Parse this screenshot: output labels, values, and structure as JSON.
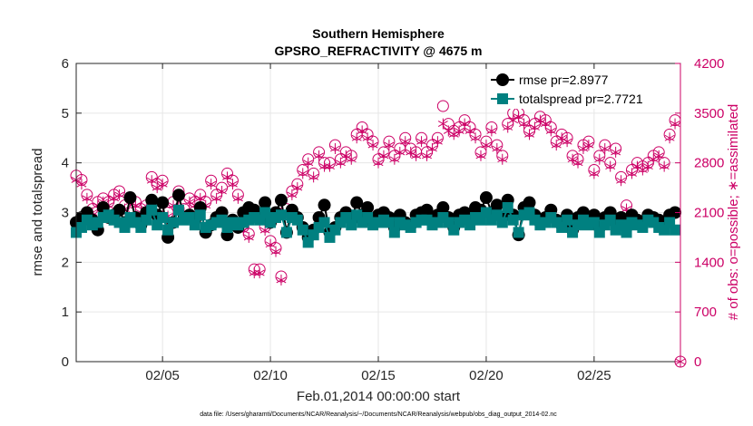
{
  "chart_data": {
    "type": "line",
    "title_line1": "Southern Hemisphere",
    "title_line2": "GPSRO_REFRACTIVITY @ 4675 m",
    "xlabel": "Feb.01,2014 00:00:00 start",
    "ylabel_left": "rmse and totalspread",
    "ylabel_right": "# of obs: o=possible; ∗=assimilated",
    "footer": "data file: /Users/gharamti/Documents/NCAR/Reanalysis/~/Documents/NCAR/Reanalysis/webpub/obs_diag_output_2014-02.nc",
    "xlim": [
      1,
      29
    ],
    "ylim_left": [
      0,
      6
    ],
    "ylim_right": [
      0,
      4200
    ],
    "x_ticks": [
      5,
      10,
      15,
      20,
      25
    ],
    "x_tick_labels": [
      "02/05",
      "02/10",
      "02/15",
      "02/20",
      "02/25"
    ],
    "y_left_ticks": [
      0,
      1,
      2,
      3,
      4,
      5,
      6
    ],
    "y_left_tick_labels": [
      "0",
      "1",
      "2",
      "3",
      "4",
      "5",
      "6"
    ],
    "y_right_ticks": [
      0,
      700,
      1400,
      2100,
      2800,
      3500,
      4200
    ],
    "y_right_tick_labels": [
      "0",
      "700",
      "1400",
      "2100",
      "2800",
      "3500",
      "4200"
    ],
    "legend": [
      "rmse pr=2.8977",
      "totalspread pr=2.7721"
    ],
    "colors": {
      "rmse": "#000000",
      "spread": "#008080",
      "obs": "#cc0066",
      "grid": "#e6e6e6"
    },
    "series": [
      {
        "name": "rmse",
        "x": [
          1.0,
          1.25,
          1.5,
          1.75,
          2.0,
          2.25,
          2.5,
          2.75,
          3.0,
          3.25,
          3.5,
          3.75,
          4.0,
          4.25,
          4.5,
          4.75,
          5.0,
          5.25,
          5.5,
          5.75,
          6.0,
          6.25,
          6.5,
          6.75,
          7.0,
          7.25,
          7.5,
          7.75,
          8.0,
          8.25,
          8.5,
          8.75,
          9.0,
          9.25,
          9.5,
          9.75,
          10.0,
          10.25,
          10.5,
          10.75,
          11.0,
          11.25,
          11.5,
          11.75,
          12.0,
          12.25,
          12.5,
          12.75,
          13.0,
          13.25,
          13.5,
          13.75,
          14.0,
          14.25,
          14.5,
          14.75,
          15.0,
          15.25,
          15.5,
          15.75,
          16.0,
          16.25,
          16.5,
          16.75,
          17.0,
          17.25,
          17.5,
          17.75,
          18.0,
          18.25,
          18.5,
          18.75,
          19.0,
          19.25,
          19.5,
          19.75,
          20.0,
          20.25,
          20.5,
          20.75,
          21.0,
          21.25,
          21.5,
          21.75,
          22.0,
          22.25,
          22.5,
          22.75,
          23.0,
          23.25,
          23.5,
          23.75,
          24.0,
          24.25,
          24.5,
          24.75,
          25.0,
          25.25,
          25.5,
          25.75,
          26.0,
          26.25,
          26.5,
          26.75,
          27.0,
          27.25,
          27.5,
          27.75,
          28.0,
          28.25,
          28.5,
          28.75
        ],
        "values": [
          2.8,
          2.9,
          3.0,
          2.85,
          2.65,
          3.1,
          2.9,
          2.95,
          3.05,
          2.8,
          3.3,
          2.9,
          2.75,
          3.0,
          3.25,
          2.95,
          3.2,
          2.5,
          2.8,
          3.35,
          2.9,
          2.95,
          2.85,
          3.1,
          2.6,
          2.75,
          2.9,
          3.0,
          2.55,
          2.85,
          2.7,
          3.0,
          3.1,
          3.05,
          2.9,
          3.2,
          2.8,
          3.0,
          3.25,
          2.6,
          3.05,
          2.9,
          2.7,
          2.5,
          2.65,
          2.9,
          3.15,
          2.6,
          2.7,
          2.9,
          3.0,
          2.85,
          3.2,
          2.95,
          3.1,
          2.8,
          2.95,
          3.0,
          2.9,
          2.7,
          2.95,
          2.8,
          2.75,
          2.95,
          3.0,
          3.05,
          2.85,
          2.95,
          3.1,
          2.9,
          2.7,
          2.95,
          3.0,
          2.85,
          3.1,
          3.05,
          3.3,
          3.0,
          3.15,
          2.9,
          3.25,
          2.95,
          2.55,
          3.1,
          3.2,
          2.95,
          2.8,
          2.9,
          3.05,
          2.85,
          2.75,
          2.95,
          2.65,
          2.9,
          3.0,
          2.85,
          2.95,
          2.7,
          2.9,
          3.0,
          2.8,
          2.9,
          2.7,
          2.95,
          2.85,
          2.8,
          2.95,
          2.9,
          2.85,
          2.75,
          2.95,
          3.0
        ]
      },
      {
        "name": "totalspread",
        "x": [
          1.0,
          1.25,
          1.5,
          1.75,
          2.0,
          2.25,
          2.5,
          2.75,
          3.0,
          3.25,
          3.5,
          3.75,
          4.0,
          4.25,
          4.5,
          4.75,
          5.0,
          5.25,
          5.5,
          5.75,
          6.0,
          6.25,
          6.5,
          6.75,
          7.0,
          7.25,
          7.5,
          7.75,
          8.0,
          8.25,
          8.5,
          8.75,
          9.0,
          9.25,
          9.5,
          9.75,
          10.0,
          10.25,
          10.5,
          10.75,
          11.0,
          11.25,
          11.5,
          11.75,
          12.0,
          12.25,
          12.5,
          12.75,
          13.0,
          13.25,
          13.5,
          13.75,
          14.0,
          14.25,
          14.5,
          14.75,
          15.0,
          15.25,
          15.5,
          15.75,
          16.0,
          16.25,
          16.5,
          16.75,
          17.0,
          17.25,
          17.5,
          17.75,
          18.0,
          18.25,
          18.5,
          18.75,
          19.0,
          19.25,
          19.5,
          19.75,
          20.0,
          20.25,
          20.5,
          20.75,
          21.0,
          21.25,
          21.5,
          21.75,
          22.0,
          22.25,
          22.5,
          22.75,
          23.0,
          23.25,
          23.5,
          23.75,
          24.0,
          24.25,
          24.5,
          24.75,
          25.0,
          25.25,
          25.5,
          25.75,
          26.0,
          26.25,
          26.5,
          26.75,
          27.0,
          27.25,
          27.5,
          27.75,
          28.0,
          28.25,
          28.5,
          28.75
        ],
        "values": [
          2.6,
          2.7,
          2.85,
          2.75,
          2.8,
          2.9,
          2.95,
          2.85,
          2.8,
          2.7,
          2.9,
          2.8,
          2.7,
          2.85,
          3.05,
          2.75,
          2.9,
          2.65,
          2.8,
          3.05,
          2.85,
          2.9,
          2.75,
          2.95,
          2.7,
          2.75,
          2.8,
          2.85,
          2.7,
          2.8,
          2.75,
          2.8,
          2.85,
          2.9,
          2.85,
          3.0,
          2.8,
          2.9,
          2.95,
          2.6,
          2.9,
          2.85,
          2.65,
          2.4,
          2.55,
          2.7,
          2.8,
          2.5,
          2.65,
          2.8,
          2.9,
          2.75,
          2.95,
          2.8,
          2.9,
          2.75,
          2.8,
          2.85,
          2.8,
          2.6,
          2.8,
          2.75,
          2.7,
          2.8,
          2.85,
          2.85,
          2.75,
          2.8,
          2.9,
          2.8,
          2.65,
          2.8,
          2.85,
          2.75,
          2.9,
          2.85,
          3.0,
          2.85,
          2.95,
          2.8,
          3.1,
          2.85,
          2.6,
          2.95,
          3.0,
          2.85,
          2.75,
          2.8,
          2.9,
          2.8,
          2.7,
          2.85,
          2.6,
          2.75,
          2.85,
          2.75,
          2.8,
          2.6,
          2.75,
          2.85,
          2.65,
          2.75,
          2.6,
          2.8,
          2.75,
          2.7,
          2.85,
          2.8,
          2.7,
          2.65,
          2.8,
          2.65
        ]
      },
      {
        "name": "obs_possible",
        "x": [
          1.0,
          1.25,
          1.5,
          1.75,
          2.0,
          2.25,
          2.5,
          2.75,
          3.0,
          3.25,
          3.5,
          3.75,
          4.0,
          4.25,
          4.5,
          4.75,
          5.0,
          5.25,
          5.5,
          5.75,
          6.0,
          6.25,
          6.5,
          6.75,
          7.0,
          7.25,
          7.5,
          7.75,
          8.0,
          8.25,
          8.5,
          8.75,
          9.0,
          9.25,
          9.5,
          9.75,
          10.0,
          10.25,
          10.5,
          10.75,
          11.0,
          11.25,
          11.5,
          11.75,
          12.0,
          12.25,
          12.5,
          12.75,
          13.0,
          13.25,
          13.5,
          13.75,
          14.0,
          14.25,
          14.5,
          14.75,
          15.0,
          15.25,
          15.5,
          15.75,
          16.0,
          16.25,
          16.5,
          16.75,
          17.0,
          17.25,
          17.5,
          17.75,
          18.0,
          18.25,
          18.5,
          18.75,
          19.0,
          19.25,
          19.5,
          19.75,
          20.0,
          20.25,
          20.5,
          20.75,
          21.0,
          21.25,
          21.5,
          21.75,
          22.0,
          22.25,
          22.5,
          22.75,
          23.0,
          23.25,
          23.5,
          23.75,
          24.0,
          24.25,
          24.5,
          24.75,
          25.0,
          25.25,
          25.5,
          25.75,
          26.0,
          26.25,
          26.5,
          26.75,
          27.0,
          27.25,
          27.5,
          27.75,
          28.0,
          28.25,
          28.5,
          28.75,
          29.0
        ],
        "values": [
          2620,
          2560,
          2350,
          2150,
          2250,
          2300,
          2250,
          2350,
          2400,
          2200,
          2300,
          2250,
          2150,
          2200,
          2600,
          2500,
          2550,
          2100,
          2250,
          2400,
          2150,
          2300,
          2250,
          2350,
          2250,
          2550,
          2350,
          2450,
          2650,
          2550,
          2350,
          1900,
          1800,
          1300,
          1300,
          1900,
          1700,
          1600,
          1200,
          2150,
          2400,
          2500,
          2700,
          2850,
          2650,
          2950,
          2800,
          2800,
          3050,
          2850,
          2950,
          2900,
          3200,
          3300,
          3200,
          3100,
          2850,
          2950,
          3100,
          2900,
          3000,
          3150,
          3000,
          2950,
          3150,
          2950,
          3050,
          3150,
          3600,
          3350,
          3250,
          3300,
          3400,
          3300,
          3200,
          2950,
          3100,
          3300,
          3050,
          2900,
          3350,
          3500,
          3500,
          3400,
          3250,
          3350,
          3450,
          3400,
          3300,
          3100,
          3200,
          3150,
          2900,
          2850,
          3050,
          3100,
          2700,
          2900,
          3050,
          2800,
          3000,
          2600,
          2200,
          2700,
          2800,
          2750,
          2800,
          2900,
          2950,
          2800,
          3200,
          3400,
          0
        ]
      },
      {
        "name": "obs_assimilated",
        "x": [
          1.0,
          1.25,
          1.5,
          1.75,
          2.0,
          2.25,
          2.5,
          2.75,
          3.0,
          3.25,
          3.5,
          3.75,
          4.0,
          4.25,
          4.5,
          4.75,
          5.0,
          5.25,
          5.5,
          5.75,
          6.0,
          6.25,
          6.5,
          6.75,
          7.0,
          7.25,
          7.5,
          7.75,
          8.0,
          8.25,
          8.5,
          8.75,
          9.0,
          9.25,
          9.5,
          9.75,
          10.0,
          10.25,
          10.5,
          10.75,
          11.0,
          11.25,
          11.5,
          11.75,
          12.0,
          12.25,
          12.5,
          12.75,
          13.0,
          13.25,
          13.5,
          13.75,
          14.0,
          14.25,
          14.5,
          14.75,
          15.0,
          15.25,
          15.5,
          15.75,
          16.0,
          16.25,
          16.5,
          16.75,
          17.0,
          17.25,
          17.5,
          17.75,
          18.0,
          18.25,
          18.5,
          18.75,
          19.0,
          19.25,
          19.5,
          19.75,
          20.0,
          20.25,
          20.5,
          20.75,
          21.0,
          21.25,
          21.5,
          21.75,
          22.0,
          22.25,
          22.5,
          22.75,
          23.0,
          23.25,
          23.5,
          23.75,
          24.0,
          24.25,
          24.5,
          24.75,
          25.0,
          25.25,
          25.5,
          25.75,
          26.0,
          26.25,
          26.5,
          26.75,
          27.0,
          27.25,
          27.5,
          27.75,
          28.0,
          28.25,
          28.5,
          28.75,
          29.0
        ],
        "values": [
          2560,
          2500,
          2300,
          2100,
          2200,
          2250,
          2200,
          2300,
          2350,
          2150,
          2250,
          2200,
          2100,
          2150,
          2550,
          2450,
          2500,
          2050,
          2200,
          2350,
          2100,
          2250,
          2200,
          2300,
          2200,
          2500,
          2300,
          2400,
          2600,
          2500,
          2300,
          1850,
          1750,
          1250,
          1250,
          1850,
          1650,
          1550,
          1150,
          2100,
          2350,
          2450,
          2650,
          2800,
          2600,
          2900,
          2750,
          2750,
          3000,
          2800,
          2900,
          2850,
          3150,
          3250,
          3150,
          3050,
          2800,
          2900,
          3050,
          2850,
          2950,
          3100,
          2950,
          2900,
          3100,
          2900,
          3000,
          3100,
          3350,
          3250,
          3200,
          3250,
          3350,
          3250,
          3150,
          2900,
          3050,
          3250,
          3000,
          2850,
          3300,
          3400,
          3450,
          3350,
          3200,
          3300,
          3400,
          3350,
          3250,
          3050,
          3150,
          3100,
          2850,
          2800,
          3000,
          3050,
          2650,
          2850,
          3000,
          2750,
          2950,
          2550,
          2150,
          2650,
          2750,
          2700,
          2750,
          2850,
          2900,
          2750,
          3150,
          3350,
          0
        ]
      }
    ]
  }
}
